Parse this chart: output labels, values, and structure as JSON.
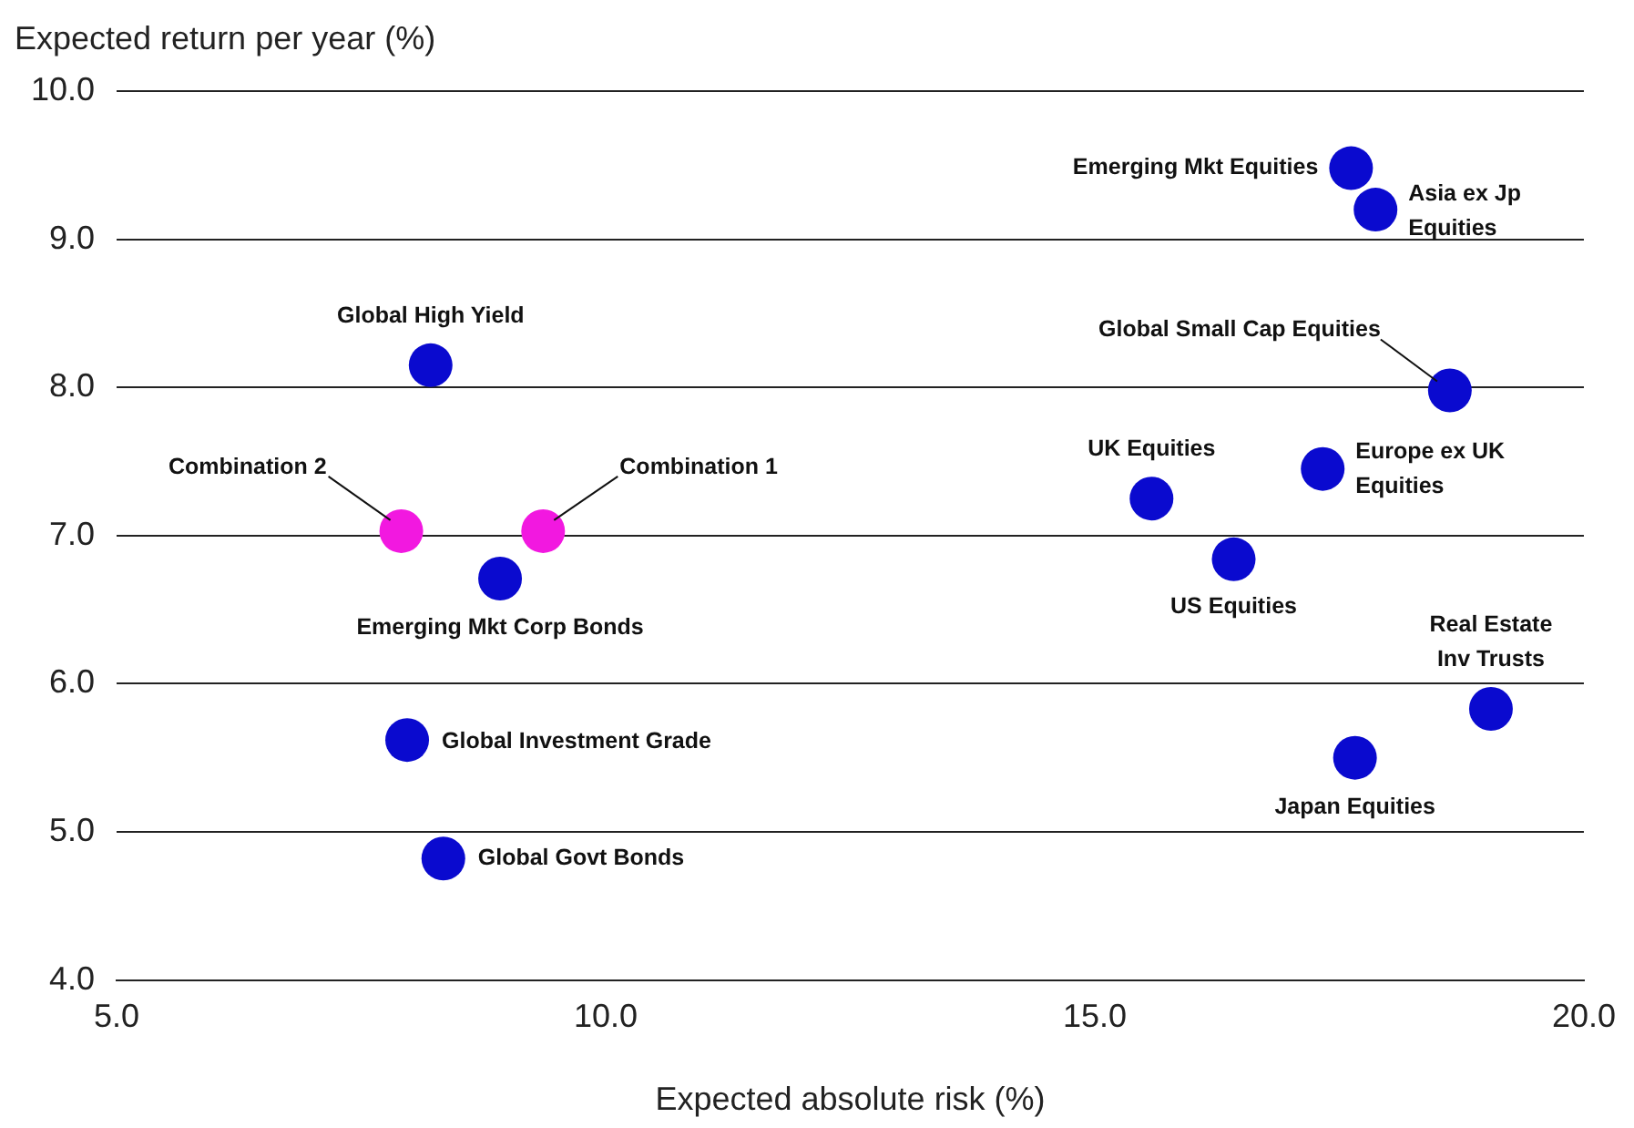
{
  "chart_data": {
    "type": "scatter",
    "ylabel": "Expected return per year (%)",
    "xlabel": "Expected absolute risk (%)",
    "series": [
      {
        "color": "#0a0acf",
        "x": [
          17.62,
          17.87,
          18.63,
          17.33,
          15.58,
          16.42,
          19.05,
          17.66,
          8.21,
          8.92,
          7.97,
          8.34
        ],
        "values": [
          9.48,
          9.2,
          7.98,
          7.45,
          7.25,
          6.84,
          5.83,
          5.5,
          8.15,
          6.71,
          5.62,
          4.82
        ]
      },
      {
        "color": "#f218e0",
        "x": [
          7.91,
          9.36
        ],
        "values": [
          7.03,
          7.03
        ]
      }
    ],
    "annotations": [
      {
        "text": "Emerging Mkt Equities",
        "x": 17.62,
        "y": 9.48
      },
      {
        "text": "Asia ex Jp Equities",
        "x": 17.87,
        "y": 9.2
      },
      {
        "text": "Global Small Cap Equities",
        "x": 18.63,
        "y": 7.98
      },
      {
        "text": "Europe ex UK Equities",
        "x": 17.33,
        "y": 7.45
      },
      {
        "text": "UK Equities",
        "x": 15.58,
        "y": 7.25
      },
      {
        "text": "US Equities",
        "x": 16.42,
        "y": 6.84
      },
      {
        "text": "Real Estate Inv Trusts",
        "x": 19.05,
        "y": 5.83
      },
      {
        "text": "Japan Equities",
        "x": 17.66,
        "y": 5.5
      },
      {
        "text": "Global High Yield",
        "x": 8.21,
        "y": 8.15
      },
      {
        "text": "Emerging Mkt Corp Bonds",
        "x": 8.92,
        "y": 6.71
      },
      {
        "text": "Global Investment Grade",
        "x": 7.97,
        "y": 5.62
      },
      {
        "text": "Global Govt Bonds",
        "x": 8.34,
        "y": 4.82
      },
      {
        "text": "Combination 2",
        "x": 7.91,
        "y": 7.03
      },
      {
        "text": "Combination 1",
        "x": 9.36,
        "y": 7.03
      }
    ],
    "xlim": [
      5,
      20
    ],
    "xticks": [
      {
        "value": 5,
        "label": "5.0"
      },
      {
        "value": 10,
        "label": "10.0"
      },
      {
        "value": 15,
        "label": "15.0"
      },
      {
        "value": 20,
        "label": "20.0"
      }
    ],
    "ylim": [
      4,
      10
    ],
    "yticks": [
      {
        "value": 4,
        "label": "4.0"
      },
      {
        "value": 5,
        "label": "5.0"
      },
      {
        "value": 6,
        "label": "6.0"
      },
      {
        "value": 7,
        "label": "7.0"
      },
      {
        "value": 8,
        "label": "8.0"
      },
      {
        "value": 9,
        "label": "9.0"
      },
      {
        "value": 10,
        "label": "10.0"
      }
    ],
    "grid": "y",
    "marker": "circle",
    "legend": false
  }
}
